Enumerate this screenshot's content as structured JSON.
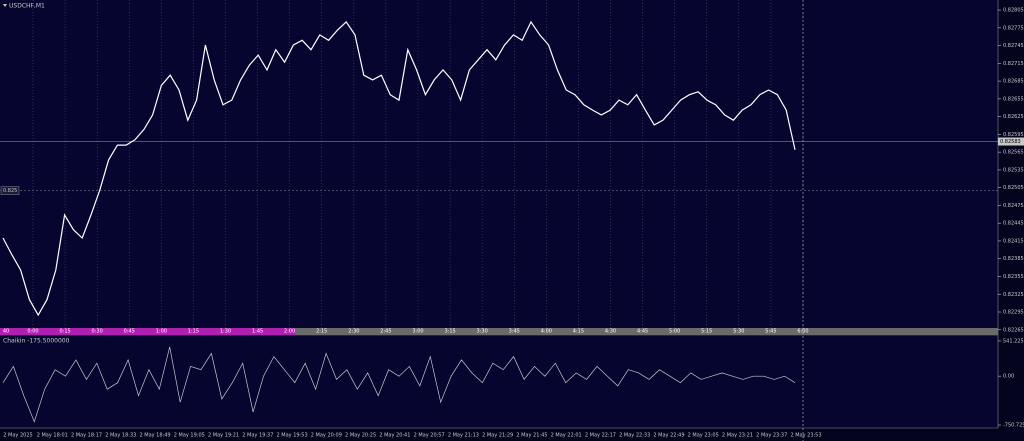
{
  "window": {
    "title": "USDCHF,M1"
  },
  "chart_data": [
    {
      "type": "line",
      "series": [
        {
          "name": "USDCHF,M1",
          "color": "#ffffff",
          "values": [
            0.8242,
            0.82392,
            0.82366,
            0.82316,
            0.8229,
            0.82316,
            0.82366,
            0.82459,
            0.82434,
            0.8242,
            0.82459,
            0.82501,
            0.82552,
            0.82577,
            0.82577,
            0.82586,
            0.82603,
            0.82628,
            0.82678,
            0.82695,
            0.8267,
            0.82619,
            0.82653,
            0.82746,
            0.82687,
            0.82645,
            0.82653,
            0.82687,
            0.82712,
            0.82729,
            0.82704,
            0.82738,
            0.82717,
            0.82746,
            0.82754,
            0.82738,
            0.82763,
            0.82754,
            0.82771,
            0.82785,
            0.82763,
            0.82695,
            0.82687,
            0.82695,
            0.82662,
            0.82653,
            0.82738,
            0.82704,
            0.82662,
            0.82687,
            0.82704,
            0.82687,
            0.82653,
            0.82704,
            0.82721,
            0.82738,
            0.82721,
            0.82746,
            0.82763,
            0.82754,
            0.82785,
            0.82763,
            0.82746,
            0.82704,
            0.8267,
            0.82662,
            0.82645,
            0.82636,
            0.82628,
            0.82636,
            0.82653,
            0.82645,
            0.82662,
            0.82636,
            0.82611,
            0.82619,
            0.82636,
            0.82653,
            0.82662,
            0.82667,
            0.82653,
            0.82645,
            0.82628,
            0.82619,
            0.82636,
            0.82645,
            0.82662,
            0.8267,
            0.82662,
            0.82636,
            0.82569
          ]
        }
      ],
      "ylim": [
        0.82268,
        0.82822
      ],
      "yticks": [
        0.82805,
        0.82775,
        0.82745,
        0.82715,
        0.82685,
        0.82655,
        0.82625,
        0.82595,
        0.82565,
        0.82535,
        0.82505,
        0.82475,
        0.82445,
        0.82415,
        0.82385,
        0.82355,
        0.82325,
        0.82295,
        0.82265
      ],
      "bid": 0.82583,
      "level": 0.825,
      "x_labels": [
        "40",
        "0:00",
        "0:15",
        "0:30",
        "0:45",
        "1:00",
        "1:15",
        "1:30",
        "1:45",
        "2:00",
        "2:15",
        "2:30",
        "2:45",
        "3:00",
        "3:15",
        "3:30",
        "3:45",
        "4:00",
        "4:15",
        "4:30",
        "4:45",
        "5:00",
        "5:15",
        "5:30",
        "5:45",
        "6:00"
      ],
      "grid": true
    },
    {
      "type": "line",
      "title": "Chaikin -175.5000000",
      "series": [
        {
          "name": "Chaikin",
          "color": "#c8c8c8",
          "values": [
            -100,
            150,
            -300,
            -700,
            -200,
            100,
            0,
            250,
            -50,
            200,
            -200,
            -100,
            250,
            -300,
            100,
            -200,
            450,
            -400,
            150,
            100,
            350,
            -350,
            -100,
            200,
            -550,
            0,
            300,
            100,
            -100,
            200,
            -200,
            350,
            -50,
            100,
            -200,
            50,
            -300,
            100,
            0,
            150,
            -150,
            300,
            -400,
            0,
            250,
            50,
            -100,
            200,
            100,
            300,
            -50,
            150,
            0,
            200,
            -100,
            50,
            -50,
            150,
            0,
            -150,
            100,
            50,
            -50,
            100,
            0,
            -100,
            50,
            -50,
            0,
            50,
            0,
            -50,
            0,
            0,
            -50,
            0,
            -100
          ]
        }
      ],
      "ylim": [
        -796.3,
        617.2
      ],
      "yticks": [
        541.225,
        {
          "value": 0,
          "label": "0.00"
        },
        -750.725
      ],
      "x_labels": [
        "2 May 2025",
        "2 May 18:01",
        "2 May 18:17",
        "2 May 18:33",
        "2 May 18:49",
        "2 May 19:05",
        "2 May 19:21",
        "2 May 19:37",
        "2 May 19:53",
        "2 May 20:09",
        "2 May 20:25",
        "2 May 20:41",
        "2 May 20:57",
        "2 May 21:13",
        "2 May 21:29",
        "2 May 21:45",
        "2 May 22:01",
        "2 May 22:17",
        "2 May 22:33",
        "2 May 22:49",
        "2 May 23:05",
        "2 May 23:21",
        "2 May 23:37",
        "2 May 23:53"
      ]
    }
  ]
}
